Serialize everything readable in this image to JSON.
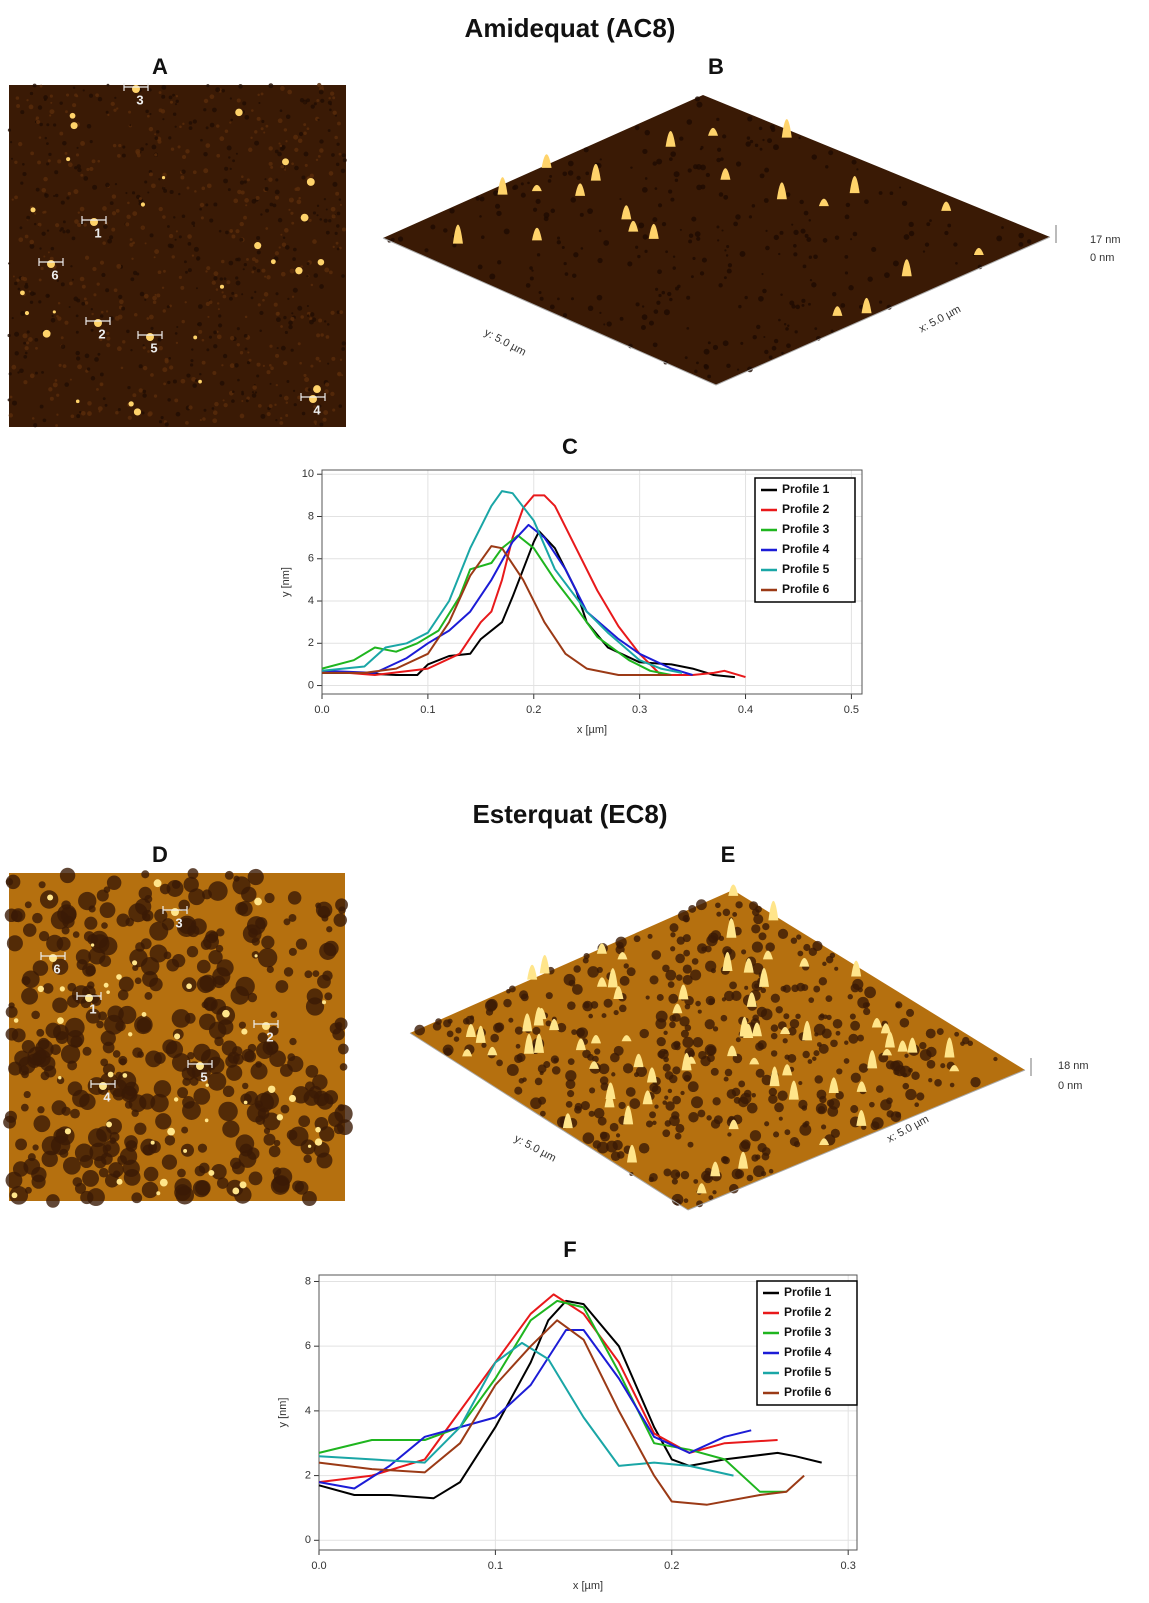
{
  "figure": {
    "sections": [
      {
        "title": "Amidequat (AC8)",
        "map_label": "A",
        "view_label": "B",
        "map_markers": [
          "3",
          "1",
          "6",
          "2",
          "5",
          "4"
        ],
        "z_top": "17 nm",
        "z_bottom": "0 nm",
        "y_extent": "y: 5.0 µm",
        "x_extent": "x: 5.0 µm"
      },
      {
        "title": "Esterquat (EC8)",
        "map_label": "D",
        "view_label": "E",
        "map_markers": [
          "3",
          "6",
          "1",
          "2",
          "5",
          "4"
        ],
        "z_top": "18 nm",
        "z_bottom": "0 nm",
        "y_extent": "y: 5.0 µm",
        "x_extent": "x: 5.0 µm"
      }
    ]
  },
  "chart_data": [
    {
      "type": "line",
      "title": "C",
      "x_label": "x [µm]",
      "y_label": "y [nm]",
      "xlim": [
        0,
        0.51
      ],
      "ylim": [
        -0.4,
        10.2
      ],
      "xticks": [
        {
          "value": 0,
          "label": "0.0"
        },
        0.1,
        0.2,
        0.3,
        0.4,
        0.5
      ],
      "yticks": [
        0,
        2,
        4,
        6,
        8,
        10
      ],
      "grid": true,
      "series": [
        {
          "name": "Profile 1",
          "color": "#000000",
          "x": [
            0,
            0.03,
            0.07,
            0.09,
            0.1,
            0.12,
            0.14,
            0.15,
            0.17,
            0.18,
            0.19,
            0.2,
            0.205,
            0.22,
            0.24,
            0.25,
            0.27,
            0.3,
            0.33,
            0.35,
            0.37,
            0.39
          ],
          "values": [
            0.6,
            0.6,
            0.5,
            0.5,
            1.0,
            1.4,
            1.5,
            2.2,
            3.0,
            4.2,
            5.5,
            6.8,
            7.3,
            6.5,
            4.5,
            3.0,
            1.8,
            1.1,
            1.0,
            0.8,
            0.5,
            0.4
          ]
        },
        {
          "name": "Profile 2",
          "color": "#e8191b",
          "x": [
            0,
            0.05,
            0.1,
            0.13,
            0.15,
            0.16,
            0.17,
            0.18,
            0.19,
            0.2,
            0.21,
            0.22,
            0.24,
            0.26,
            0.28,
            0.3,
            0.32,
            0.35,
            0.37,
            0.38,
            0.4
          ],
          "values": [
            0.7,
            0.5,
            0.8,
            1.5,
            3.0,
            3.5,
            5.0,
            7.0,
            8.4,
            9.0,
            9.0,
            8.5,
            6.5,
            4.5,
            2.8,
            1.5,
            0.5,
            0.5,
            0.6,
            0.7,
            0.4
          ]
        },
        {
          "name": "Profile 3",
          "color": "#1fb51f",
          "x": [
            0,
            0.03,
            0.05,
            0.07,
            0.09,
            0.11,
            0.13,
            0.14,
            0.16,
            0.17,
            0.185,
            0.2,
            0.22,
            0.24,
            0.26,
            0.29,
            0.31,
            0.33
          ],
          "values": [
            0.8,
            1.2,
            1.8,
            1.6,
            2.0,
            2.6,
            4.2,
            5.5,
            5.8,
            6.5,
            7.1,
            6.5,
            5.0,
            3.7,
            2.3,
            1.2,
            0.7,
            0.5
          ]
        },
        {
          "name": "Profile 4",
          "color": "#1c1cd6",
          "x": [
            0,
            0.05,
            0.08,
            0.1,
            0.12,
            0.14,
            0.16,
            0.18,
            0.195,
            0.21,
            0.23,
            0.25,
            0.28,
            0.3,
            0.33,
            0.35
          ],
          "values": [
            0.7,
            0.6,
            1.3,
            2.0,
            2.6,
            3.5,
            5.0,
            6.8,
            7.6,
            7.0,
            5.5,
            3.5,
            2.2,
            1.5,
            0.8,
            0.5
          ]
        },
        {
          "name": "Profile 5",
          "color": "#1aa6a6",
          "x": [
            0,
            0.04,
            0.06,
            0.08,
            0.1,
            0.12,
            0.14,
            0.16,
            0.17,
            0.18,
            0.2,
            0.22,
            0.25,
            0.27,
            0.3,
            0.32,
            0.34
          ],
          "values": [
            0.7,
            0.9,
            1.8,
            2.0,
            2.5,
            4.0,
            6.5,
            8.5,
            9.2,
            9.1,
            7.8,
            5.5,
            3.5,
            2.5,
            1.2,
            0.8,
            0.6
          ]
        },
        {
          "name": "Profile 6",
          "color": "#9b3a16",
          "x": [
            0,
            0.04,
            0.07,
            0.1,
            0.12,
            0.14,
            0.16,
            0.17,
            0.19,
            0.21,
            0.23,
            0.25,
            0.28,
            0.33
          ],
          "values": [
            0.6,
            0.6,
            0.8,
            1.5,
            3.0,
            5.2,
            6.6,
            6.5,
            5.0,
            3.0,
            1.5,
            0.8,
            0.5,
            0.5
          ]
        }
      ]
    },
    {
      "type": "line",
      "title": "F",
      "x_label": "x [µm]",
      "y_label": "y [nm]",
      "xlim": [
        0,
        0.305
      ],
      "ylim": [
        -0.3,
        8.2
      ],
      "xticks": [
        {
          "value": 0,
          "label": "0.0"
        },
        0.1,
        0.2,
        0.3
      ],
      "yticks": [
        0,
        2,
        4,
        6,
        8
      ],
      "grid": true,
      "series": [
        {
          "name": "Profile 1",
          "color": "#000000",
          "x": [
            0,
            0.02,
            0.04,
            0.065,
            0.08,
            0.1,
            0.12,
            0.13,
            0.14,
            0.15,
            0.17,
            0.19,
            0.2,
            0.21,
            0.23,
            0.26,
            0.27,
            0.285
          ],
          "values": [
            1.7,
            1.4,
            1.4,
            1.3,
            1.8,
            3.5,
            5.5,
            6.8,
            7.4,
            7.3,
            6.0,
            3.5,
            2.5,
            2.3,
            2.5,
            2.7,
            2.6,
            2.4
          ]
        },
        {
          "name": "Profile 2",
          "color": "#e8191b",
          "x": [
            0,
            0.03,
            0.06,
            0.08,
            0.1,
            0.12,
            0.133,
            0.15,
            0.17,
            0.19,
            0.21,
            0.23,
            0.26
          ],
          "values": [
            1.8,
            2.0,
            2.5,
            4.0,
            5.5,
            7.0,
            7.6,
            7.0,
            5.5,
            3.3,
            2.7,
            3.0,
            3.1
          ]
        },
        {
          "name": "Profile 3",
          "color": "#1fb51f",
          "x": [
            0,
            0.03,
            0.06,
            0.08,
            0.1,
            0.12,
            0.135,
            0.15,
            0.17,
            0.19,
            0.21,
            0.23,
            0.25,
            0.265
          ],
          "values": [
            2.7,
            3.1,
            3.1,
            3.5,
            5.0,
            6.8,
            7.4,
            7.2,
            5.2,
            3.0,
            2.8,
            2.5,
            1.5,
            1.5
          ]
        },
        {
          "name": "Profile 4",
          "color": "#1c1cd6",
          "x": [
            0,
            0.02,
            0.04,
            0.06,
            0.08,
            0.1,
            0.12,
            0.14,
            0.15,
            0.17,
            0.19,
            0.21,
            0.23,
            0.245
          ],
          "values": [
            1.8,
            1.6,
            2.3,
            3.2,
            3.5,
            3.8,
            4.8,
            6.5,
            6.5,
            5.0,
            3.2,
            2.7,
            3.2,
            3.4
          ]
        },
        {
          "name": "Profile 5",
          "color": "#1aa6a6",
          "x": [
            0,
            0.03,
            0.06,
            0.08,
            0.1,
            0.115,
            0.13,
            0.15,
            0.17,
            0.19,
            0.21,
            0.235
          ],
          "values": [
            2.6,
            2.5,
            2.4,
            3.5,
            5.5,
            6.1,
            5.6,
            3.8,
            2.3,
            2.4,
            2.3,
            2.0
          ]
        },
        {
          "name": "Profile 6",
          "color": "#9b3a16",
          "x": [
            0,
            0.03,
            0.06,
            0.08,
            0.1,
            0.12,
            0.135,
            0.15,
            0.17,
            0.19,
            0.2,
            0.22,
            0.25,
            0.265,
            0.275
          ],
          "values": [
            2.4,
            2.2,
            2.1,
            3.0,
            4.8,
            6.0,
            6.8,
            6.2,
            4.0,
            2.0,
            1.2,
            1.1,
            1.4,
            1.5,
            2.0
          ]
        }
      ]
    }
  ]
}
